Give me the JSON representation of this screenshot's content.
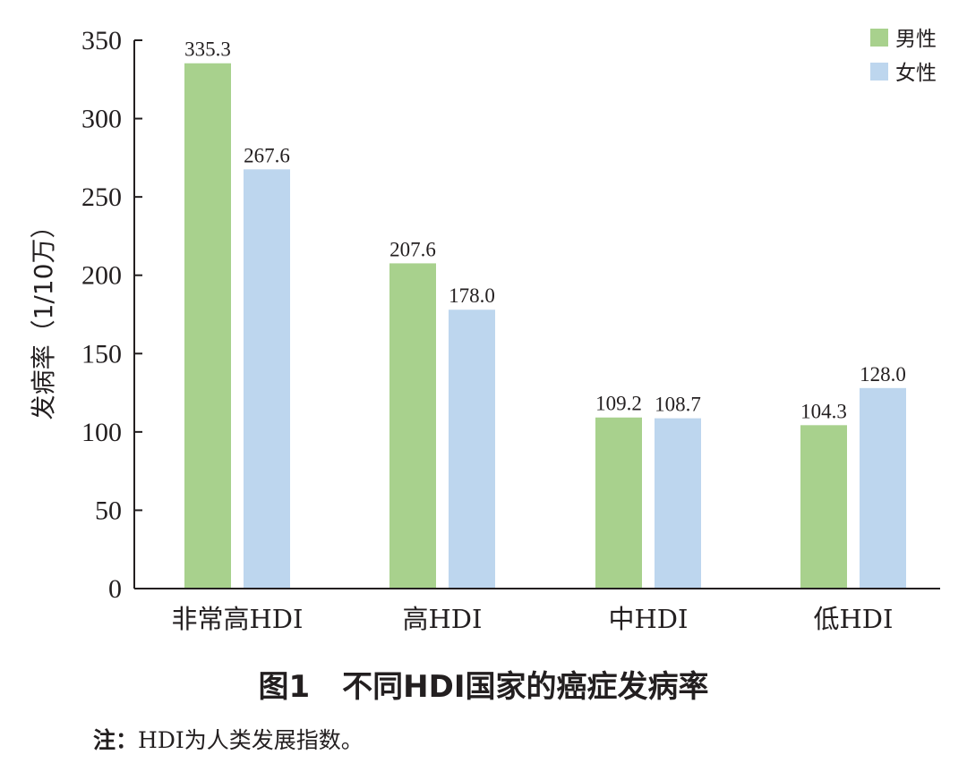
{
  "chart_data": {
    "type": "bar",
    "categories": [
      "非常高HDI",
      "高HDI",
      "中HDI",
      "低HDI"
    ],
    "series": [
      {
        "name": "男性",
        "values": [
          335.3,
          207.6,
          109.2,
          104.3
        ],
        "color": "#a8d18d"
      },
      {
        "name": "女性",
        "values": [
          267.6,
          178.0,
          108.7,
          128.0
        ],
        "color": "#bdd6ee"
      }
    ],
    "value_labels": [
      [
        "335.3",
        "207.6",
        "109.2",
        "104.3"
      ],
      [
        "267.6",
        "178.0",
        "108.7",
        "128.0"
      ]
    ],
    "ylabel": "发病率（1/10万）",
    "ylim": [
      0,
      350
    ],
    "yticks": [
      "0",
      "50",
      "100",
      "150",
      "200",
      "250",
      "300",
      "350"
    ],
    "grid": false,
    "legend_position": "top-right"
  },
  "caption": {
    "figure_no": "图1",
    "text": "不同HDI国家的癌症发病率"
  },
  "note": {
    "label": "注：",
    "text": "HDI为人类发展指数。"
  }
}
